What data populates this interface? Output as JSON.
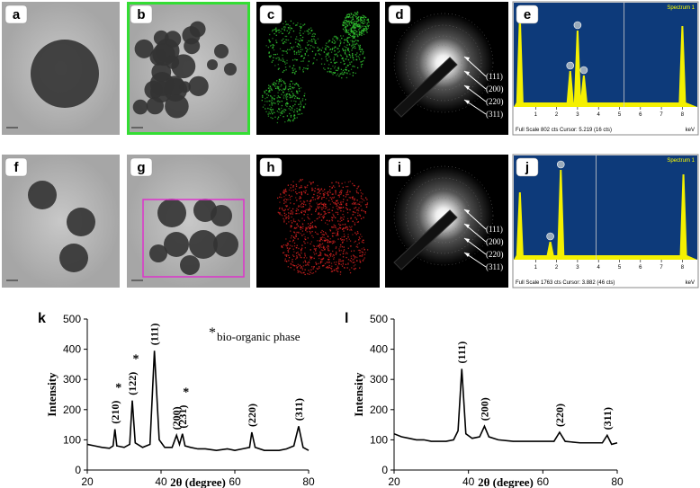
{
  "panels": [
    {
      "label": "a"
    },
    {
      "label": "b"
    },
    {
      "label": "c"
    },
    {
      "label": "d",
      "rings": [
        "(111)",
        "(200)",
        "(220)",
        "(311)"
      ]
    },
    {
      "label": "e",
      "eds": {
        "title": "Spectrum 1",
        "ticks": [
          1,
          2,
          3,
          4,
          5,
          6,
          7,
          8
        ],
        "footer": "Full Scale 802 cts Cursor: 5.219 (16 cts)",
        "unit": "keV"
      }
    },
    {
      "label": "f"
    },
    {
      "label": "g"
    },
    {
      "label": "h"
    },
    {
      "label": "i",
      "rings": [
        "(111)",
        "(200)",
        "(220)",
        "(311)"
      ]
    },
    {
      "label": "j",
      "eds": {
        "title": "Spectrum 1",
        "ticks": [
          1,
          2,
          3,
          4,
          5,
          6,
          7,
          8
        ],
        "footer": "Full Scale 1763 cts Cursor: 3.882 (46 cts)",
        "unit": "keV"
      }
    }
  ],
  "chart_data": [
    {
      "type": "line",
      "panel": "k",
      "xlabel": "2θ (degree)",
      "ylabel": "Intensity",
      "legend_mark": "*",
      "legend": "bio-organic phase",
      "xlim": [
        20,
        80
      ],
      "xticks": [
        20,
        40,
        60,
        80
      ],
      "ylim": [
        0,
        500
      ],
      "yticks": [
        0,
        100,
        200,
        300,
        400,
        500
      ],
      "color": "#000000",
      "x": [
        20,
        22,
        24,
        26,
        27,
        27.5,
        28,
        30,
        31.5,
        32.2,
        33,
        35,
        37,
        38.2,
        39.5,
        41,
        43,
        44.2,
        45,
        45.8,
        46.5,
        48,
        50,
        52,
        55,
        58,
        60,
        62,
        64,
        64.6,
        65.5,
        68,
        70,
        72,
        74,
        76,
        77.3,
        78.5,
        80
      ],
      "values": [
        85,
        80,
        75,
        72,
        80,
        135,
        80,
        75,
        85,
        230,
        90,
        75,
        85,
        395,
        100,
        75,
        75,
        115,
        85,
        120,
        80,
        75,
        70,
        70,
        65,
        70,
        65,
        70,
        75,
        125,
        75,
        65,
        65,
        65,
        70,
        80,
        145,
        75,
        65
      ],
      "annotations": [
        {
          "text": "(210)",
          "x": 27.5,
          "mark": "*"
        },
        {
          "text": "(122)",
          "x": 32.2,
          "mark": "*"
        },
        {
          "text": "(111)",
          "x": 38.2
        },
        {
          "text": "(200)",
          "x": 44.2
        },
        {
          "text": "(231)",
          "x": 45.8,
          "mark": "*"
        },
        {
          "text": "(220)",
          "x": 64.6
        },
        {
          "text": "(311)",
          "x": 77.3
        }
      ]
    },
    {
      "type": "line",
      "panel": "l",
      "xlabel": "2θ (degree)",
      "ylabel": "Intensity",
      "xlim": [
        20,
        80
      ],
      "xticks": [
        20,
        40,
        60,
        80
      ],
      "ylim": [
        0,
        500
      ],
      "yticks": [
        0,
        100,
        200,
        300,
        400,
        500
      ],
      "color": "#000000",
      "x": [
        20,
        22,
        24,
        26,
        28,
        30,
        32,
        34,
        36,
        37.2,
        38.2,
        39.3,
        41,
        43,
        44.3,
        45.5,
        48,
        52,
        56,
        60,
        63,
        64.5,
        66,
        70,
        74,
        76,
        77.3,
        78.5,
        80
      ],
      "values": [
        120,
        110,
        105,
        100,
        100,
        95,
        95,
        95,
        100,
        130,
        335,
        120,
        105,
        110,
        145,
        110,
        100,
        95,
        95,
        95,
        95,
        125,
        95,
        90,
        90,
        90,
        115,
        85,
        90
      ],
      "annotations": [
        {
          "text": "(111)",
          "x": 38.2
        },
        {
          "text": "(200)",
          "x": 44.3
        },
        {
          "text": "(220)",
          "x": 64.5
        },
        {
          "text": "(311)",
          "x": 77.3
        }
      ]
    }
  ]
}
